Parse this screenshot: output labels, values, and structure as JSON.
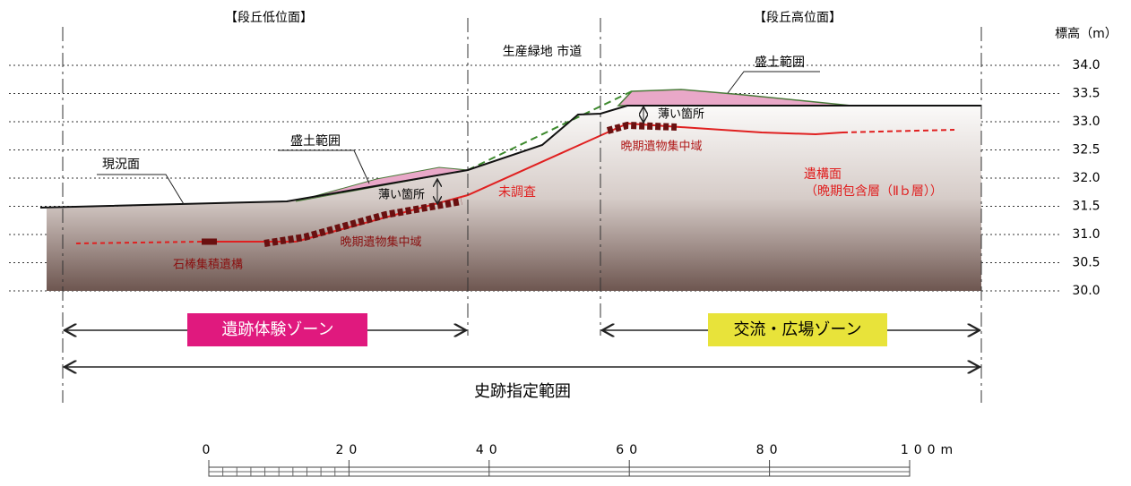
{
  "header": {
    "left_terrace": "【段丘低位面】",
    "right_terrace": "【段丘高位面】",
    "center": "生産緑地 市道"
  },
  "elevation_axis": {
    "title": "標高（m）",
    "ticks": [
      "34.0",
      "33.5",
      "33.0",
      "32.5",
      "32.0",
      "31.5",
      "31.0",
      "30.5",
      "30.0"
    ]
  },
  "labels": {
    "fill_right": "盛土範囲",
    "fill_left": "盛土範囲",
    "current_surface": "現況面",
    "thin_left": "薄い箇所",
    "thin_right": "薄い箇所",
    "late_artifacts_right": "晩期遺物集中域",
    "unsurveyed": "未調査",
    "feature_surface": "遺構面",
    "feature_layer": "（晩期包含層（Ⅱｂ層））",
    "stone_rod_feature": "石棒集積遺構",
    "late_artifacts_left": "晩期遺物集中域"
  },
  "zones": {
    "experience": "遺跡体験ゾーン",
    "exchange": "交流・広場ゾーン",
    "designated": "史跡指定範囲"
  },
  "scale": {
    "ticks": [
      "0",
      "20",
      "40",
      "60",
      "80",
      "100m"
    ]
  }
}
